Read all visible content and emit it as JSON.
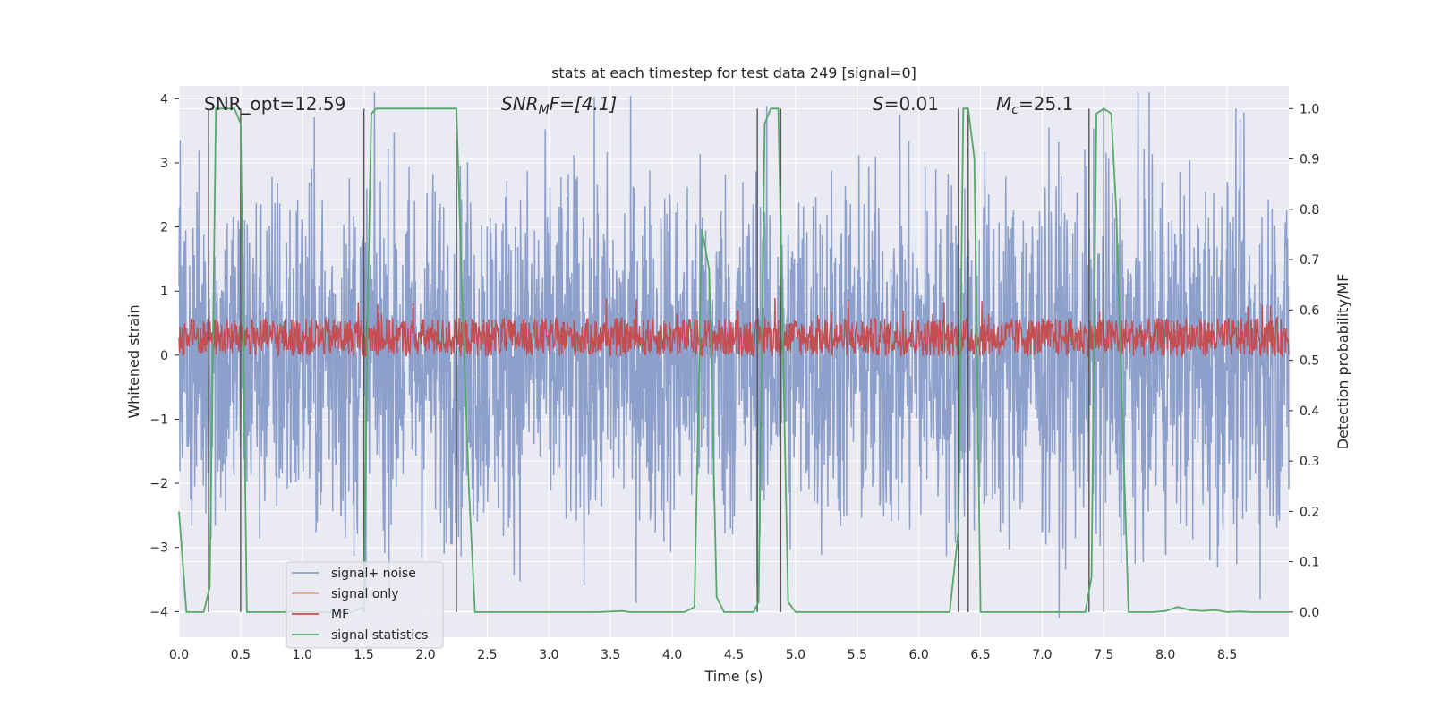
{
  "chart_data": {
    "type": "line",
    "title": "stats at each timestep for test data 249 [signal=0]",
    "xlabel": "Time (s)",
    "ylabel_left": "Whitened strain",
    "ylabel_right": "Detection probability/MF",
    "xlim": [
      0,
      9.0
    ],
    "ylim_left": [
      -4.4,
      4.2
    ],
    "ylim_right": [
      -0.05,
      1.045
    ],
    "x_ticks": [
      "0.0",
      "0.5",
      "1.0",
      "1.5",
      "2.0",
      "2.5",
      "3.0",
      "3.5",
      "4.0",
      "4.5",
      "5.0",
      "5.5",
      "6.0",
      "6.5",
      "7.0",
      "7.5",
      "8.0",
      "8.5"
    ],
    "x_tick_values": [
      0,
      0.5,
      1.0,
      1.5,
      2.0,
      2.5,
      3.0,
      3.5,
      4.0,
      4.5,
      5.0,
      5.5,
      6.0,
      6.5,
      7.0,
      7.5,
      8.0,
      8.5
    ],
    "y_left_ticks": [
      "−4",
      "−3",
      "−2",
      "−1",
      "0",
      "1",
      "2",
      "3",
      "4"
    ],
    "y_left_tick_values": [
      -4,
      -3,
      -2,
      -1,
      0,
      1,
      2,
      3,
      4
    ],
    "y_right_ticks": [
      "0.0",
      "0.1",
      "0.2",
      "0.3",
      "0.4",
      "0.5",
      "0.6",
      "0.7",
      "0.8",
      "0.9",
      "1.0"
    ],
    "y_right_tick_values": [
      0,
      0.1,
      0.2,
      0.3,
      0.4,
      0.5,
      0.6,
      0.7,
      0.8,
      0.9,
      1.0
    ],
    "annotations": {
      "snr_opt": "SNR_opt=12.59",
      "snr_mf_main": "SNR",
      "snr_mf_sub": "M",
      "snr_mf_rest": "F=[4.1]",
      "s_main": "S",
      "s_rest": "=0.01",
      "mc_main": "M",
      "mc_sub": "c",
      "mc_rest": "=25.1"
    },
    "legend": {
      "position": "lower-left",
      "entries": [
        "signal+ noise",
        "signal only",
        "MF",
        "signal statistics"
      ]
    },
    "colors": {
      "signal_noise": "#8da0cb",
      "signal_only": "#e9a58a",
      "mf": "#c44e52",
      "stats": "#55a868",
      "vlines": "#555555",
      "plot_bg": "#eaeaf2",
      "grid": "#ffffff"
    },
    "series": [
      {
        "name": "signal statistics",
        "axis": "right",
        "x": [
          0,
          0.06,
          0.1,
          0.15,
          0.2,
          0.25,
          0.3,
          0.35,
          0.4,
          0.45,
          0.5,
          0.55,
          0.6,
          0.7,
          0.8,
          0.9,
          1.0,
          1.1,
          1.2,
          1.3,
          1.4,
          1.5,
          1.53,
          1.56,
          1.6,
          1.7,
          1.8,
          1.9,
          2.0,
          2.1,
          2.2,
          2.25,
          2.3,
          2.35,
          2.4,
          2.5,
          2.6,
          2.8,
          3.0,
          3.2,
          3.4,
          3.6,
          3.65,
          3.7,
          3.8,
          4.0,
          4.1,
          4.18,
          4.24,
          4.3,
          4.36,
          4.42,
          4.5,
          4.6,
          4.66,
          4.7,
          4.75,
          4.8,
          4.86,
          4.9,
          4.94,
          5.0,
          5.1,
          5.3,
          5.5,
          5.7,
          5.9,
          6.1,
          6.25,
          6.32,
          6.36,
          6.4,
          6.45,
          6.5,
          6.6,
          6.8,
          7.0,
          7.2,
          7.3,
          7.35,
          7.4,
          7.44,
          7.5,
          7.56,
          7.6,
          7.7,
          7.8,
          7.9,
          8.0,
          8.1,
          8.2,
          8.3,
          8.4,
          8.5,
          8.6,
          8.7,
          8.8,
          9.0
        ],
        "y": [
          0.2,
          0.0,
          0.0,
          0.0,
          0.0,
          0.05,
          1.0,
          1.0,
          1.0,
          1.0,
          0.97,
          0.0,
          0.0,
          0.0,
          0.0,
          0.0,
          0.0,
          0.0,
          0.0,
          0.0,
          0.0,
          0.01,
          0.6,
          0.99,
          1.0,
          1.0,
          1.0,
          1.0,
          1.0,
          1.0,
          1.0,
          1.0,
          0.6,
          0.25,
          0.0,
          0.0,
          0.0,
          0.0,
          0.0,
          0.0,
          0.0,
          0.002,
          0.0,
          0.0,
          0.0,
          0.0,
          0.0,
          0.01,
          0.76,
          0.68,
          0.03,
          0.0,
          0.0,
          0.0,
          0.0,
          0.02,
          0.97,
          1.0,
          1.0,
          0.5,
          0.02,
          0.0,
          0.0,
          0.0,
          0.0,
          0.0,
          0.0,
          0.0,
          0.0,
          0.16,
          1.0,
          1.0,
          0.9,
          0.0,
          0.0,
          0.0,
          0.0,
          0.0,
          0.0,
          0.0,
          0.07,
          0.99,
          1.0,
          0.99,
          0.8,
          0.0,
          0.0,
          0.0,
          0.002,
          0.01,
          0.004,
          0.002,
          0.004,
          0.0,
          0.001,
          0.0,
          0.0,
          0.0
        ]
      },
      {
        "name": "signal+ noise",
        "axis": "left",
        "description_values": "dense noise band, approx -4..4"
      },
      {
        "name": "MF",
        "axis": "left",
        "description_values": "dense band, approx 0..0.8"
      }
    ],
    "vlines_x": [
      0.24,
      0.5,
      1.5,
      2.25,
      4.69,
      4.88,
      6.32,
      6.4,
      7.38,
      7.5
    ]
  }
}
